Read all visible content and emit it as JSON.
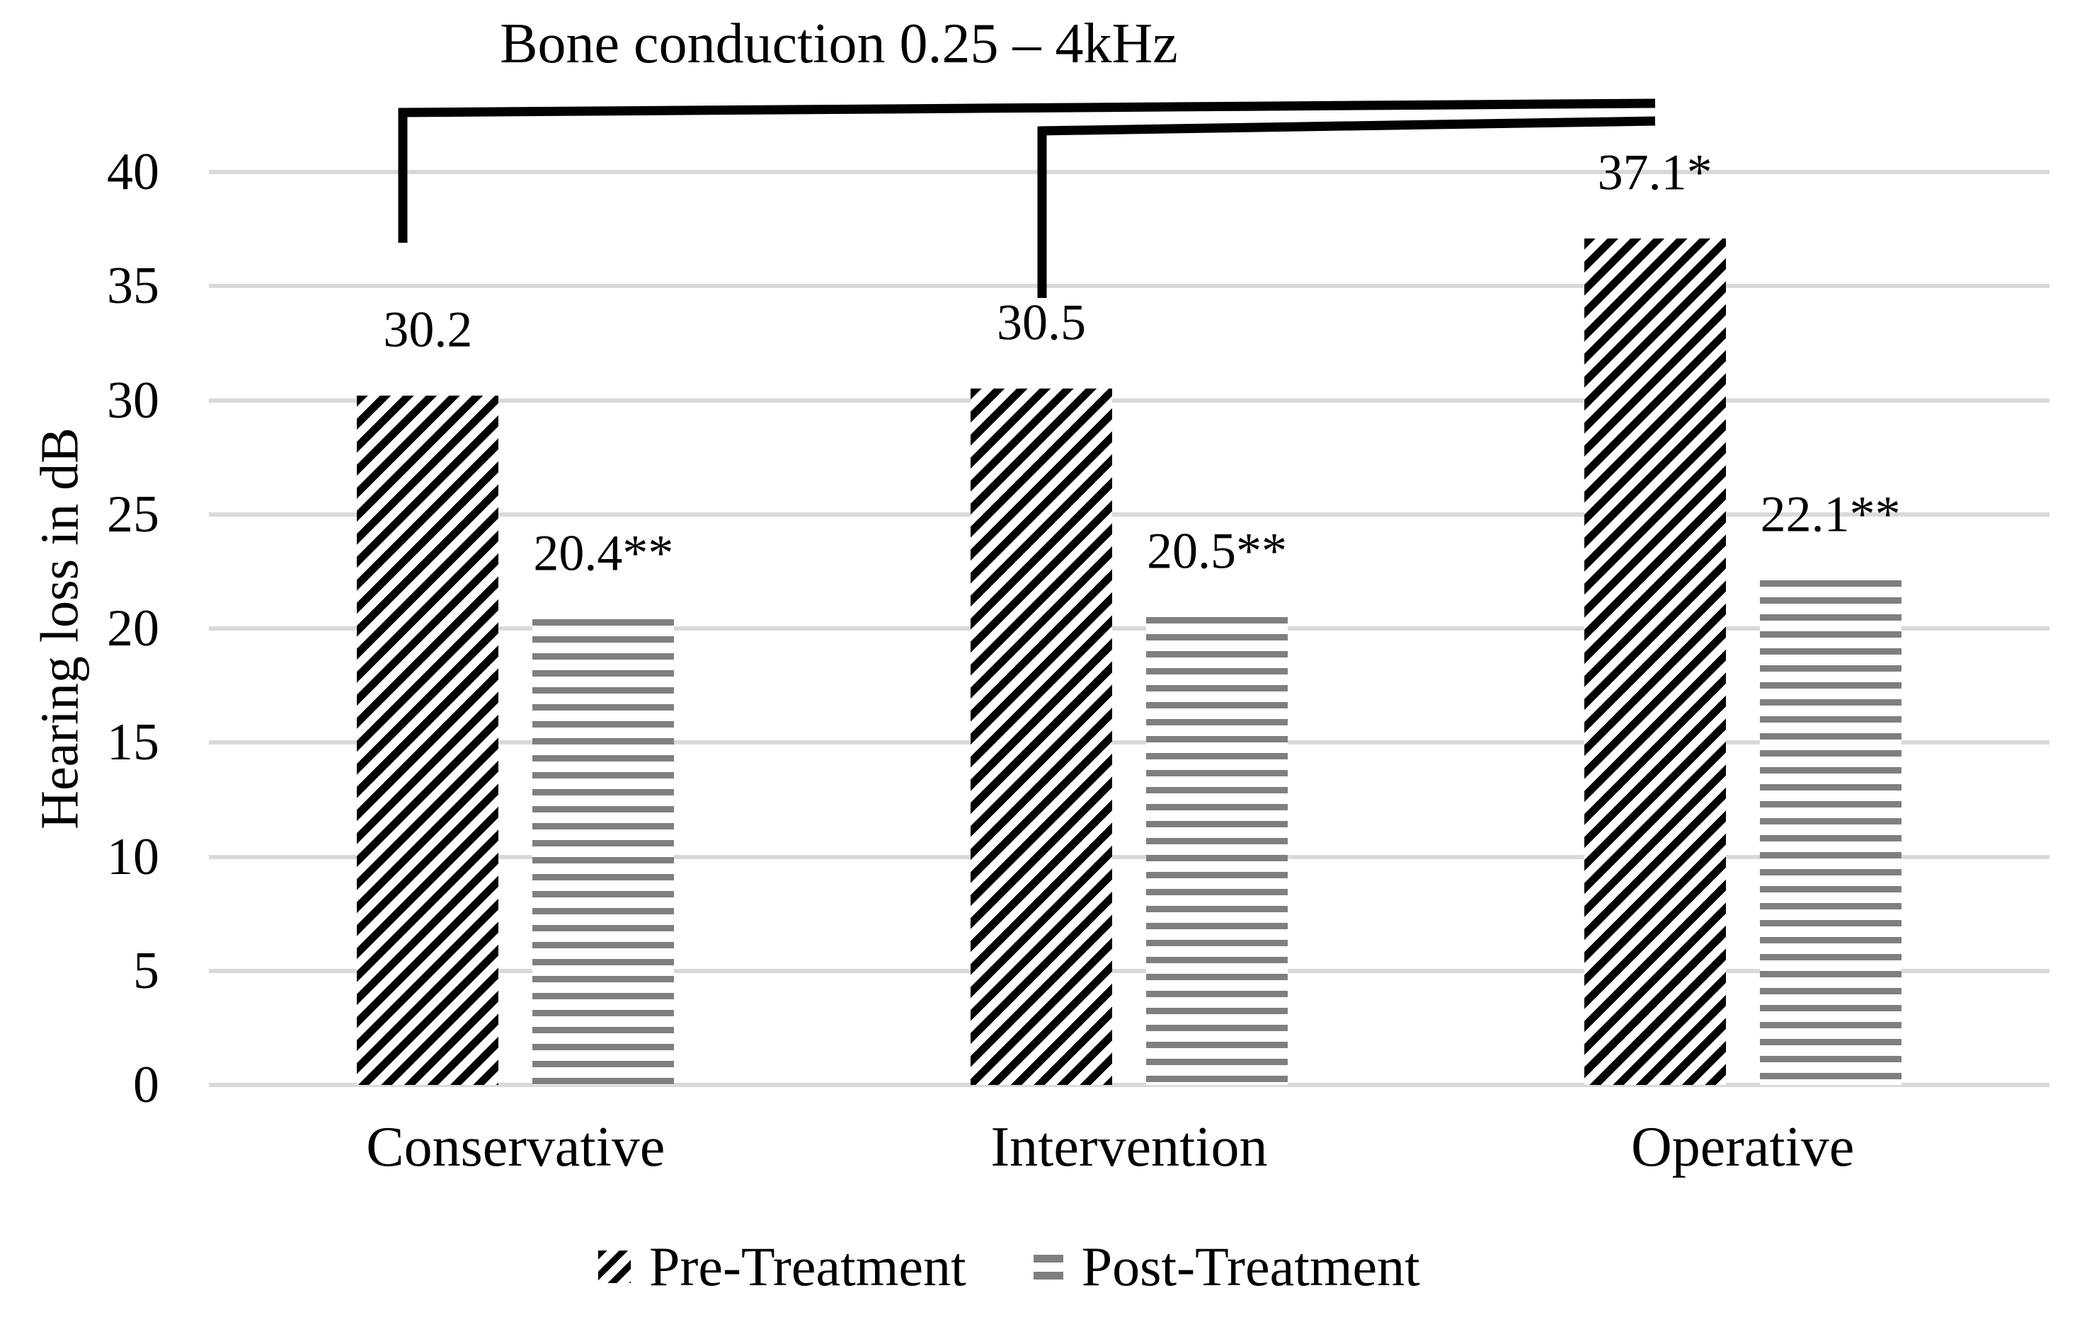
{
  "chart_data": {
    "type": "bar",
    "title": "Bone conduction 0.25 – 4kHz",
    "categories": [
      "Conservative",
      "Intervention",
      "Operative"
    ],
    "series": [
      {
        "name": "Pre-Treatment",
        "pattern": "diagonal-hatch-black",
        "values": [
          30.2,
          30.5,
          37.1
        ],
        "data_labels": [
          "30.2",
          "30.5",
          "37.1*"
        ]
      },
      {
        "name": "Post-Treatment",
        "pattern": "horizontal-lines-gray",
        "values": [
          20.4,
          20.5,
          22.1
        ],
        "data_labels": [
          "20.4**",
          "20.5**",
          "22.1**"
        ]
      }
    ],
    "xlabel": "",
    "ylabel": "Hearing loss in dB",
    "ylim": [
      0,
      40
    ],
    "yticks": [
      0,
      5,
      10,
      15,
      20,
      25,
      30,
      35,
      40
    ],
    "grid": true,
    "legend_position": "bottom",
    "significance_brackets": [
      {
        "from": "Conservative",
        "to": "Operative",
        "series": "Pre-Treatment"
      },
      {
        "from": "Intervention",
        "to": "Operative",
        "series": "Pre-Treatment"
      }
    ],
    "colors": {
      "pre_pattern": "#000000",
      "post_pattern": "#7f7f7f",
      "gridline": "#d9d9d9",
      "text": "#000000",
      "background": "#ffffff"
    }
  }
}
